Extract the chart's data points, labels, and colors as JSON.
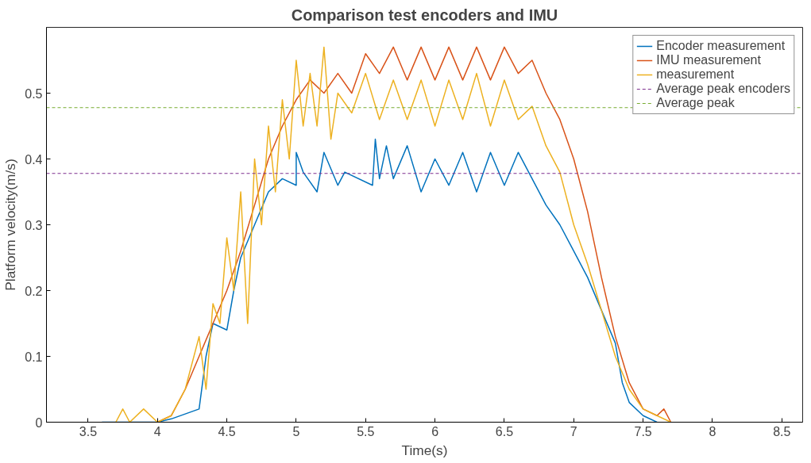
{
  "chart_data": {
    "type": "line",
    "title": "Comparison test encoders and IMU",
    "xlabel": "Time(s)",
    "ylabel": "Platform velocity(m/s)",
    "xlim": [
      3.2,
      8.65
    ],
    "ylim": [
      0,
      0.6
    ],
    "xticks": [
      3.5,
      4,
      4.5,
      5,
      5.5,
      6,
      6.5,
      7,
      7.5,
      8,
      8.5
    ],
    "yticks": [
      0,
      0.1,
      0.2,
      0.3,
      0.4,
      0.5
    ],
    "grid": false,
    "legend": "top right",
    "line_style": "solid",
    "marker": "none",
    "series": [
      {
        "name": "Encoder measurement",
        "color": "#0072bd",
        "x": [
          3.6,
          4.0,
          4.1,
          4.3,
          4.35,
          4.4,
          4.5,
          4.55,
          4.6,
          4.7,
          4.8,
          4.9,
          5.0,
          5.0,
          5.05,
          5.15,
          5.2,
          5.3,
          5.35,
          5.55,
          5.57,
          5.6,
          5.65,
          5.7,
          5.8,
          5.9,
          6.0,
          6.1,
          6.2,
          6.3,
          6.4,
          6.5,
          6.6,
          6.7,
          6.8,
          6.9,
          7.0,
          7.1,
          7.2,
          7.3,
          7.35,
          7.4,
          7.5,
          7.6
        ],
        "values": [
          0,
          0,
          0.005,
          0.02,
          0.1,
          0.15,
          0.14,
          0.2,
          0.25,
          0.3,
          0.35,
          0.37,
          0.36,
          0.41,
          0.38,
          0.35,
          0.41,
          0.36,
          0.38,
          0.36,
          0.43,
          0.37,
          0.42,
          0.37,
          0.42,
          0.35,
          0.4,
          0.36,
          0.41,
          0.35,
          0.41,
          0.36,
          0.41,
          0.37,
          0.33,
          0.3,
          0.26,
          0.22,
          0.17,
          0.12,
          0.06,
          0.03,
          0.01,
          0
        ]
      },
      {
        "name": "IMU measurement",
        "color": "#d95319",
        "x": [
          4.0,
          4.1,
          4.2,
          4.3,
          4.4,
          4.5,
          4.6,
          4.7,
          4.8,
          4.9,
          5.0,
          5.1,
          5.2,
          5.3,
          5.4,
          5.5,
          5.6,
          5.7,
          5.8,
          5.9,
          6.0,
          6.1,
          6.2,
          6.3,
          6.4,
          6.5,
          6.6,
          6.7,
          6.8,
          6.9,
          7.0,
          7.1,
          7.2,
          7.3,
          7.4,
          7.5,
          7.6,
          7.65,
          7.7
        ],
        "values": [
          0,
          0.01,
          0.05,
          0.1,
          0.15,
          0.2,
          0.26,
          0.33,
          0.4,
          0.45,
          0.49,
          0.52,
          0.5,
          0.53,
          0.5,
          0.56,
          0.53,
          0.57,
          0.52,
          0.57,
          0.52,
          0.57,
          0.52,
          0.57,
          0.52,
          0.57,
          0.53,
          0.55,
          0.5,
          0.46,
          0.4,
          0.32,
          0.22,
          0.13,
          0.06,
          0.02,
          0.01,
          0.02,
          0
        ]
      },
      {
        "name": "measurement",
        "color": "#edb120",
        "x": [
          3.7,
          3.75,
          3.8,
          3.9,
          4.0,
          4.1,
          4.2,
          4.3,
          4.35,
          4.4,
          4.45,
          4.5,
          4.55,
          4.6,
          4.65,
          4.7,
          4.75,
          4.8,
          4.85,
          4.9,
          4.95,
          5.0,
          5.05,
          5.1,
          5.15,
          5.2,
          5.25,
          5.3,
          5.4,
          5.5,
          5.6,
          5.7,
          5.8,
          5.9,
          6.0,
          6.1,
          6.2,
          6.3,
          6.4,
          6.5,
          6.6,
          6.7,
          6.8,
          6.9,
          7.0,
          7.1,
          7.2,
          7.3,
          7.4,
          7.5,
          7.6,
          7.7
        ],
        "values": [
          0,
          0.02,
          0,
          0.02,
          0,
          0.01,
          0.05,
          0.13,
          0.05,
          0.18,
          0.15,
          0.28,
          0.2,
          0.35,
          0.15,
          0.4,
          0.3,
          0.45,
          0.35,
          0.49,
          0.4,
          0.55,
          0.45,
          0.53,
          0.45,
          0.57,
          0.43,
          0.5,
          0.47,
          0.53,
          0.46,
          0.52,
          0.46,
          0.52,
          0.45,
          0.52,
          0.46,
          0.53,
          0.45,
          0.52,
          0.46,
          0.48,
          0.42,
          0.38,
          0.3,
          0.24,
          0.17,
          0.1,
          0.05,
          0.02,
          0.01,
          0
        ]
      }
    ],
    "ref_lines": [
      {
        "axis": "y",
        "value": 0.378,
        "label": "Average peak encoders",
        "color": "#7e2f8e",
        "line_style": "dashed"
      },
      {
        "axis": "y",
        "value": 0.478,
        "label": "Average peak",
        "color": "#77ac30",
        "line_style": "dashed"
      }
    ]
  }
}
